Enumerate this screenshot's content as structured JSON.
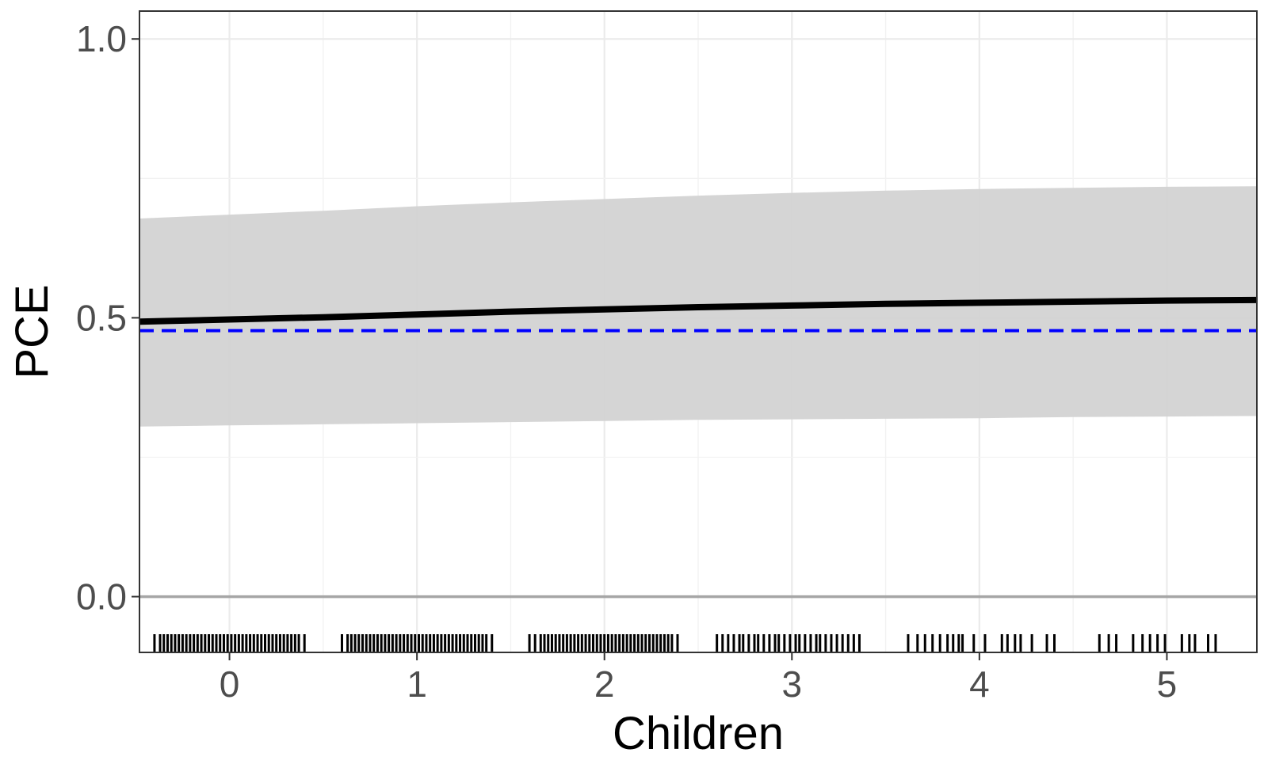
{
  "chart_data": {
    "type": "line",
    "xlabel": "Children",
    "ylabel": "PCE",
    "xlim": [
      -0.48,
      5.48
    ],
    "ylim": [
      -0.1,
      1.05
    ],
    "x_ticks": [
      0,
      1,
      2,
      3,
      4,
      5
    ],
    "x_tick_labels": [
      "0",
      "1",
      "2",
      "3",
      "4",
      "5"
    ],
    "y_ticks": [
      0.0,
      0.5,
      1.0
    ],
    "y_tick_labels": [
      "0.0",
      "0.5",
      "1.0"
    ],
    "grid": true,
    "series": [
      {
        "role": "estimate",
        "x": [
          -0.48,
          0,
          0.5,
          1,
          1.5,
          2,
          2.5,
          3,
          3.5,
          4,
          4.5,
          5,
          5.48
        ],
        "y": [
          0.493,
          0.497,
          0.501,
          0.506,
          0.511,
          0.515,
          0.519,
          0.522,
          0.525,
          0.527,
          0.529,
          0.531,
          0.532
        ],
        "lower": [
          0.305,
          0.307,
          0.309,
          0.311,
          0.313,
          0.315,
          0.317,
          0.318,
          0.319,
          0.32,
          0.322,
          0.323,
          0.324
        ],
        "upper": [
          0.678,
          0.685,
          0.692,
          0.7,
          0.707,
          0.713,
          0.719,
          0.724,
          0.728,
          0.731,
          0.733,
          0.735,
          0.736
        ],
        "color": "#000000",
        "band_color": "#d3d3d3"
      }
    ],
    "reference_lines": [
      {
        "y": 0.477,
        "style": "dashed",
        "color": "#0000ff"
      },
      {
        "y": 0.0,
        "style": "solid",
        "color": "#a6a6a6"
      }
    ],
    "rug_x": [
      -0.4,
      -0.37,
      -0.35,
      -0.33,
      -0.31,
      -0.29,
      -0.27,
      -0.25,
      -0.23,
      -0.21,
      -0.19,
      -0.17,
      -0.15,
      -0.13,
      -0.11,
      -0.09,
      -0.07,
      -0.05,
      -0.03,
      -0.01,
      0.01,
      0.03,
      0.05,
      0.07,
      0.09,
      0.11,
      0.13,
      0.15,
      0.17,
      0.19,
      0.21,
      0.23,
      0.25,
      0.27,
      0.29,
      0.31,
      0.33,
      0.35,
      0.37,
      0.4,
      0.6,
      0.63,
      0.65,
      0.67,
      0.69,
      0.71,
      0.73,
      0.75,
      0.77,
      0.79,
      0.81,
      0.83,
      0.85,
      0.87,
      0.89,
      0.91,
      0.93,
      0.95,
      0.97,
      0.99,
      1.01,
      1.03,
      1.05,
      1.07,
      1.09,
      1.11,
      1.13,
      1.15,
      1.17,
      1.19,
      1.21,
      1.23,
      1.25,
      1.27,
      1.29,
      1.31,
      1.33,
      1.35,
      1.37,
      1.4,
      1.6,
      1.63,
      1.66,
      1.68,
      1.7,
      1.72,
      1.74,
      1.76,
      1.78,
      1.8,
      1.82,
      1.84,
      1.86,
      1.88,
      1.9,
      1.92,
      1.94,
      1.96,
      1.98,
      2.0,
      2.02,
      2.04,
      2.06,
      2.08,
      2.1,
      2.12,
      2.14,
      2.16,
      2.18,
      2.2,
      2.22,
      2.24,
      2.26,
      2.28,
      2.3,
      2.32,
      2.34,
      2.36,
      2.39,
      2.6,
      2.63,
      2.66,
      2.69,
      2.72,
      2.74,
      2.77,
      2.8,
      2.82,
      2.85,
      2.88,
      2.91,
      2.93,
      2.96,
      2.99,
      3.02,
      3.04,
      3.07,
      3.1,
      3.13,
      3.15,
      3.18,
      3.21,
      3.24,
      3.27,
      3.3,
      3.33,
      3.36,
      3.62,
      3.67,
      3.71,
      3.75,
      3.79,
      3.83,
      3.86,
      3.89,
      3.91,
      3.97,
      4.03,
      4.12,
      4.15,
      4.19,
      4.22,
      4.28,
      4.36,
      4.4,
      4.64,
      4.69,
      4.73,
      4.82,
      4.87,
      4.91,
      4.95,
      4.99,
      5.08,
      5.12,
      5.15,
      5.22,
      5.26
    ]
  }
}
